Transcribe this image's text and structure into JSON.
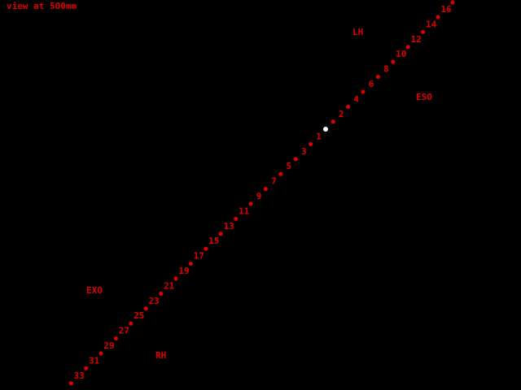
{
  "header": {
    "title": "view at 500mm"
  },
  "labels": {
    "lh": "LH",
    "eso": "ESO",
    "exo": "EXO",
    "rh": "RH"
  },
  "points": [
    1,
    2,
    3,
    4,
    5,
    6,
    7,
    8,
    9,
    10,
    11,
    12,
    13,
    14,
    15,
    16,
    17,
    19,
    21,
    23,
    25,
    27,
    29,
    31,
    33
  ]
}
